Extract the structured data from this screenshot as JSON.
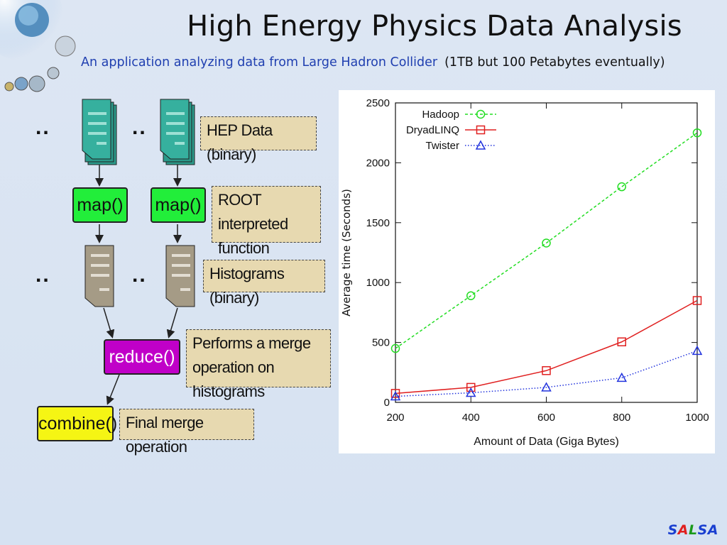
{
  "title": "High Energy Physics Data Analysis",
  "subtitle": {
    "main": "An application analyzing data from Large Hadron Collider",
    "note": "(1TB but 100 Petabytes eventually)"
  },
  "diagram": {
    "dots": "..",
    "map_label": "map()",
    "reduce_label": "reduce()",
    "combine_label": "combine()",
    "notes": {
      "hep": "HEP Data (binary)",
      "root": "ROOT interpreted function",
      "histograms": "Histograms (binary)",
      "merge": "Performs a merge operation on histograms",
      "final": "Final merge operation"
    }
  },
  "chart_data": {
    "type": "line",
    "xlabel": "Amount of Data (Giga Bytes)",
    "ylabel": "Average time (Seconds)",
    "x": [
      200,
      400,
      600,
      800,
      1000
    ],
    "xlim": [
      200,
      1000
    ],
    "ylim": [
      0,
      2500
    ],
    "xticks": [
      200,
      400,
      600,
      800,
      1000
    ],
    "yticks": [
      0,
      500,
      1000,
      1500,
      2000,
      2500
    ],
    "legend_position": "top-left",
    "series": [
      {
        "name": "Hadoop",
        "values": [
          450,
          890,
          1330,
          1800,
          2250
        ],
        "color": "#22dd22",
        "marker": "circle",
        "dash": "dashed"
      },
      {
        "name": "DryadLINQ",
        "values": [
          75,
          125,
          265,
          505,
          850
        ],
        "color": "#e02020",
        "marker": "square",
        "dash": "solid"
      },
      {
        "name": "Twister",
        "values": [
          50,
          80,
          125,
          205,
          430
        ],
        "color": "#2233dd",
        "marker": "triangle",
        "dash": "dotted"
      }
    ]
  },
  "logo": {
    "letters": [
      {
        "char": "S",
        "color": "#1a3fd0"
      },
      {
        "char": "A",
        "color": "#e02020"
      },
      {
        "char": "L",
        "color": "#1a9a1a"
      },
      {
        "char": "S",
        "color": "#1a3fd0"
      },
      {
        "char": "A",
        "color": "#1a3fd0"
      }
    ]
  }
}
